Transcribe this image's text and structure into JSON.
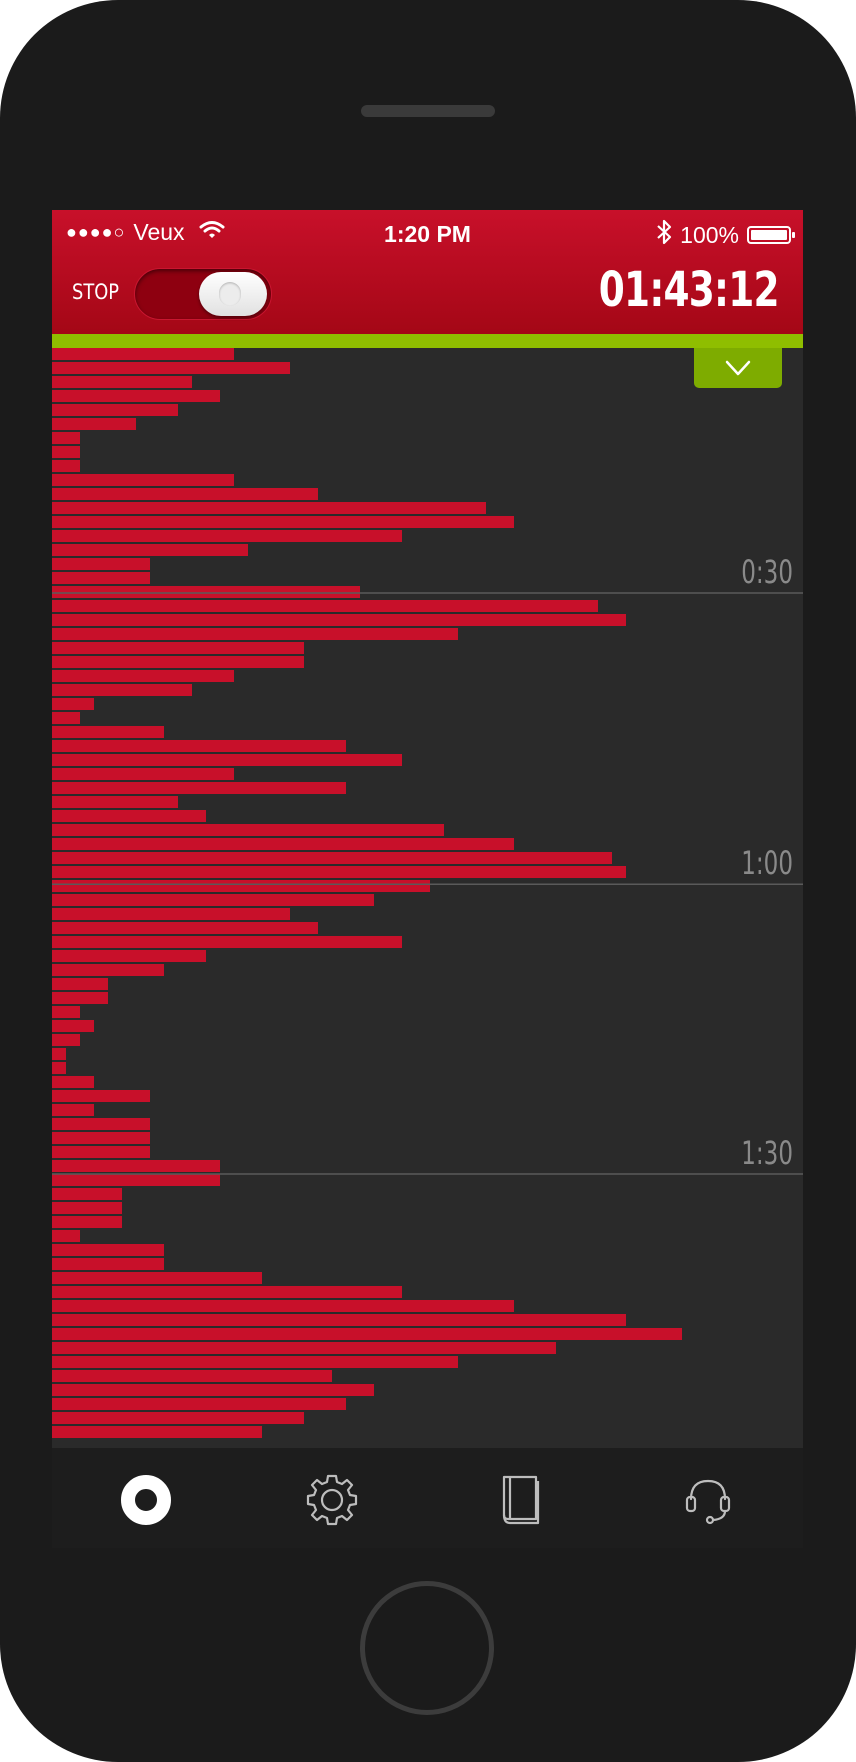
{
  "status_bar": {
    "signal_dots": "●●●●○",
    "carrier": "Veux",
    "time": "1:20 PM",
    "battery": "100%",
    "battery_level": 1.0
  },
  "header": {
    "stop_label": "STOP",
    "toggle_on": true,
    "timer": "01:43:12"
  },
  "icons": {
    "wifi": "wifi-icon",
    "bluetooth": "bluetooth-icon",
    "collapse": "chevron-down-icon",
    "record": "record-icon",
    "settings": "gear-icon",
    "book": "book-icon",
    "support": "headset-icon"
  },
  "colors": {
    "bar": "#c8102a",
    "accent_green": "#8fbe00",
    "header_red": "#b50b20"
  },
  "chart_data": {
    "type": "bar",
    "orientation": "horizontal",
    "y_tick_labels": [
      "0:30",
      "1:00",
      "1:30"
    ],
    "y_tick_values": [
      17.5,
      38.3,
      59
    ],
    "values": [
      13,
      17,
      10,
      12,
      9,
      6,
      2,
      2,
      2,
      13,
      19,
      31,
      33,
      25,
      14,
      7,
      7,
      22,
      39,
      41,
      29,
      18,
      18,
      13,
      10,
      3,
      2,
      8,
      21,
      25,
      13,
      21,
      9,
      11,
      28,
      33,
      40,
      41,
      27,
      23,
      17,
      19,
      25,
      11,
      8,
      4,
      4,
      2,
      3,
      2,
      1,
      1,
      3,
      7,
      3,
      7,
      7,
      7,
      12,
      12,
      5,
      5,
      5,
      2,
      8,
      8,
      15,
      25,
      33,
      41,
      45,
      36,
      29,
      20,
      23,
      21,
      18,
      15
    ],
    "xlim": [
      0,
      48
    ]
  }
}
